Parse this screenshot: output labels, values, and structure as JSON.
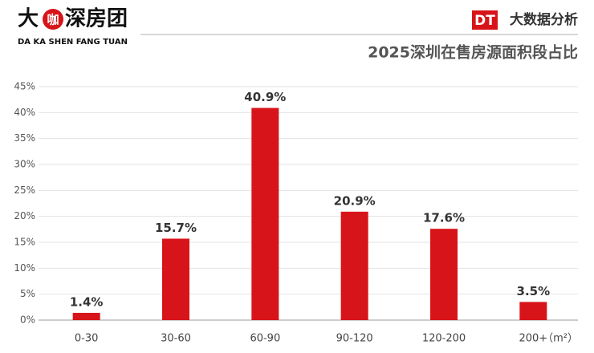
{
  "header": {
    "logo": [
      "大",
      "咖",
      "深房团"
    ],
    "logo_subtitle": "DA KA SHEN FANG TUAN",
    "badge": "DT",
    "badge_text": "大数据分析"
  },
  "chart_data": {
    "type": "bar",
    "title": "2025深圳在售房源面积段占比",
    "categories": [
      "0-30",
      "30-60",
      "60-90",
      "90-120",
      "120-200",
      "200+"
    ],
    "values": [
      1.4,
      15.7,
      40.9,
      20.9,
      17.6,
      3.5
    ],
    "value_labels": [
      "1.4%",
      "15.7%",
      "40.9%",
      "20.9%",
      "17.6%",
      "3.5%"
    ],
    "x_unit": "（m²）",
    "color": "#d7141a",
    "ylim": [
      0,
      45
    ],
    "yticks": [
      {
        "value": 0,
        "label": "0%"
      },
      {
        "value": 5,
        "label": "5%"
      },
      {
        "value": 10,
        "label": "10%"
      },
      {
        "value": 15,
        "label": "15%"
      },
      {
        "value": 20,
        "label": "20%"
      },
      {
        "value": 25,
        "label": "25%"
      },
      {
        "value": 30,
        "label": "30%"
      },
      {
        "value": 35,
        "label": "35%"
      },
      {
        "value": 40,
        "label": "40%"
      },
      {
        "value": 45,
        "label": "45%"
      }
    ],
    "grid": true
  }
}
